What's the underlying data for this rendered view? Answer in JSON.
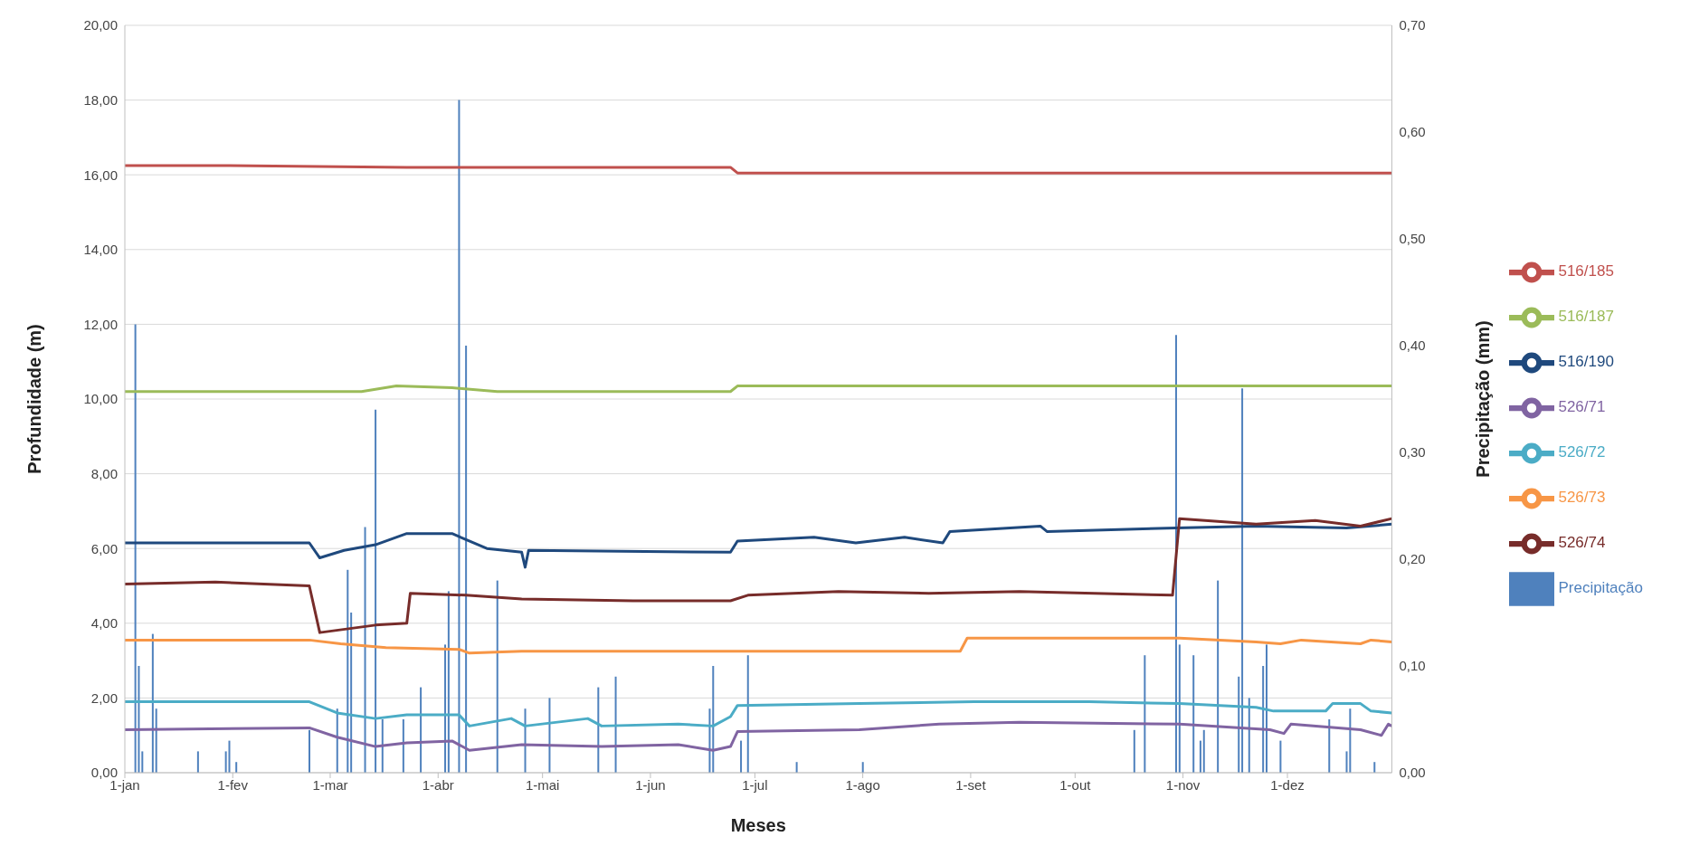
{
  "chart_data": {
    "type": "line",
    "xlabel": "Meses",
    "ylabel": "Profundidade (m)",
    "y2label": "Precipitação (mm)",
    "xlim": [
      "--01-01",
      "--12-31"
    ],
    "xticks": [
      {
        "value": "--01-01",
        "label": "1-jan"
      },
      {
        "value": "--02-01",
        "label": "1-fev"
      },
      {
        "value": "--03-01",
        "label": "1-mar"
      },
      {
        "value": "--04-01",
        "label": "1-abr"
      },
      {
        "value": "--05-01",
        "label": "1-mai"
      },
      {
        "value": "--06-01",
        "label": "1-jun"
      },
      {
        "value": "--07-01",
        "label": "1-jul"
      },
      {
        "value": "--08-01",
        "label": "1-ago"
      },
      {
        "value": "--09-01",
        "label": "1-set"
      },
      {
        "value": "--10-01",
        "label": "1-out"
      },
      {
        "value": "--11-01",
        "label": "1-nov"
      },
      {
        "value": "--12-01",
        "label": "1-dez"
      }
    ],
    "ylim": [
      0,
      20
    ],
    "yticks": [
      {
        "value": 0,
        "label": "0,00"
      },
      {
        "value": 2,
        "label": "2,00"
      },
      {
        "value": 4,
        "label": "4,00"
      },
      {
        "value": 6,
        "label": "6,00"
      },
      {
        "value": 8,
        "label": "8,00"
      },
      {
        "value": 10,
        "label": "10,00"
      },
      {
        "value": 12,
        "label": "12,00"
      },
      {
        "value": 14,
        "label": "14,00"
      },
      {
        "value": 16,
        "label": "16,00"
      },
      {
        "value": 18,
        "label": "18,00"
      },
      {
        "value": 20,
        "label": "20,00"
      }
    ],
    "y2lim": [
      0,
      0.7
    ],
    "y2ticks": [
      {
        "value": 0,
        "label": "0,00"
      },
      {
        "value": 0.1,
        "label": "0,10"
      },
      {
        "value": 0.2,
        "label": "0,20"
      },
      {
        "value": 0.3,
        "label": "0,30"
      },
      {
        "value": 0.4,
        "label": "0,40"
      },
      {
        "value": 0.5,
        "label": "0,50"
      },
      {
        "value": 0.6,
        "label": "0,60"
      },
      {
        "value": 0.7,
        "label": "0,70"
      }
    ],
    "grid": "y",
    "legend": "right",
    "marker": "none",
    "line_style": "solid",
    "series": [
      {
        "name": "Precipitação",
        "type": "bar",
        "axis": "y2",
        "color": "#4f81bd",
        "x": [
          "--01-04",
          "--01-05",
          "--01-06",
          "--01-09",
          "--01-10",
          "--01-22",
          "--01-30",
          "--01-31",
          "--02-02",
          "--02-23",
          "--03-03",
          "--03-06",
          "--03-07",
          "--03-11",
          "--03-14",
          "--03-16",
          "--03-22",
          "--03-27",
          "--04-03",
          "--04-04",
          "--04-07",
          "--04-09",
          "--04-18",
          "--04-26",
          "--05-03",
          "--05-17",
          "--05-22",
          "--06-18",
          "--06-19",
          "--06-27",
          "--06-29",
          "--07-13",
          "--08-01",
          "--10-18",
          "--10-21",
          "--10-30",
          "--10-31",
          "--11-04",
          "--11-06",
          "--11-07",
          "--11-11",
          "--11-17",
          "--11-18",
          "--11-20",
          "--11-24",
          "--11-25",
          "--11-29",
          "--12-13",
          "--12-18",
          "--12-19",
          "--12-26"
        ],
        "values": [
          0.42,
          0.1,
          0.02,
          0.13,
          0.06,
          0.02,
          0.02,
          0.03,
          0.01,
          0.04,
          0.06,
          0.19,
          0.15,
          0.23,
          0.34,
          0.05,
          0.05,
          0.08,
          0.12,
          0.17,
          0.63,
          0.4,
          0.18,
          0.06,
          0.07,
          0.08,
          0.09,
          0.06,
          0.1,
          0.03,
          0.11,
          0.01,
          0.01,
          0.04,
          0.11,
          0.41,
          0.12,
          0.11,
          0.03,
          0.04,
          0.18,
          0.09,
          0.36,
          0.07,
          0.1,
          0.12,
          0.03,
          0.05,
          0.02,
          0.06,
          0.01
        ]
      },
      {
        "name": "516/185",
        "color": "#c0504d",
        "x": [
          "--01-01",
          "--01-27",
          "--03-23",
          "--06-24",
          "--06-26",
          "--12-31"
        ],
        "values": [
          16.25,
          16.25,
          16.2,
          16.2,
          16.05,
          16.05
        ]
      },
      {
        "name": "516/187",
        "color": "#9bbb59",
        "x": [
          "--01-01",
          "--03-10",
          "--03-20",
          "--04-05",
          "--04-18",
          "--06-24",
          "--06-26",
          "--12-31"
        ],
        "values": [
          10.2,
          10.2,
          10.35,
          10.3,
          10.2,
          10.2,
          10.35,
          10.35
        ]
      },
      {
        "name": "526/71",
        "color": "#8064a2",
        "x": [
          "--01-01",
          "--02-23",
          "--03-03",
          "--03-14",
          "--03-23",
          "--04-05",
          "--04-10",
          "--04-25",
          "--05-18",
          "--06-09",
          "--06-19",
          "--06-24",
          "--06-26",
          "--07-31",
          "--08-23",
          "--09-15",
          "--10-31",
          "--11-26",
          "--11-30",
          "--12-02",
          "--12-22",
          "--12-28",
          "--12-30",
          "--12-31"
        ],
        "values": [
          1.15,
          1.2,
          0.95,
          0.7,
          0.8,
          0.85,
          0.6,
          0.75,
          0.7,
          0.75,
          0.6,
          0.7,
          1.1,
          1.15,
          1.3,
          1.35,
          1.3,
          1.15,
          1.05,
          1.3,
          1.15,
          1.0,
          1.3,
          1.25
        ]
      },
      {
        "name": "526/72",
        "color": "#4bacc6",
        "x": [
          "--01-01",
          "--02-23",
          "--03-03",
          "--03-14",
          "--03-23",
          "--04-07",
          "--04-10",
          "--04-22",
          "--04-26",
          "--05-14",
          "--05-18",
          "--06-09",
          "--06-19",
          "--06-24",
          "--06-26",
          "--07-31",
          "--09-02",
          "--10-05",
          "--10-31",
          "--11-22",
          "--11-27",
          "--12-12",
          "--12-14",
          "--12-22",
          "--12-25",
          "--12-31"
        ],
        "values": [
          1.9,
          1.9,
          1.6,
          1.45,
          1.55,
          1.55,
          1.25,
          1.45,
          1.25,
          1.45,
          1.25,
          1.3,
          1.25,
          1.5,
          1.8,
          1.85,
          1.9,
          1.9,
          1.85,
          1.75,
          1.65,
          1.65,
          1.85,
          1.85,
          1.65,
          1.6
        ]
      },
      {
        "name": "526/73",
        "color": "#f79646",
        "x": [
          "--01-01",
          "--02-23",
          "--03-04",
          "--03-17",
          "--04-07",
          "--04-10",
          "--04-25",
          "--08-29",
          "--08-31",
          "--10-31",
          "--11-22",
          "--11-29",
          "--12-05",
          "--12-22",
          "--12-25",
          "--12-31"
        ],
        "values": [
          3.55,
          3.55,
          3.45,
          3.35,
          3.3,
          3.2,
          3.25,
          3.25,
          3.6,
          3.6,
          3.5,
          3.45,
          3.55,
          3.45,
          3.55,
          3.5
        ]
      },
      {
        "name": "516/190",
        "color": "#1f497d",
        "x": [
          "--01-01",
          "--02-23",
          "--02-26",
          "--03-05",
          "--03-14",
          "--03-23",
          "--04-05",
          "--04-15",
          "--04-25",
          "--04-26",
          "--04-27",
          "--06-24",
          "--06-26",
          "--07-18",
          "--07-30",
          "--08-13",
          "--08-24",
          "--08-26",
          "--09-21",
          "--09-23",
          "--10-30",
          "--11-22",
          "--12-18",
          "--12-31"
        ],
        "values": [
          6.15,
          6.15,
          5.75,
          5.95,
          6.1,
          6.4,
          6.4,
          6.0,
          5.9,
          5.5,
          5.95,
          5.9,
          6.2,
          6.3,
          6.15,
          6.3,
          6.15,
          6.45,
          6.6,
          6.45,
          6.55,
          6.6,
          6.55,
          6.65
        ]
      },
      {
        "name": "526/74",
        "color": "#772c2a",
        "x": [
          "--01-01",
          "--01-27",
          "--02-23",
          "--02-26",
          "--03-14",
          "--03-23",
          "--03-24",
          "--04-09",
          "--04-25",
          "--05-27",
          "--06-24",
          "--06-29",
          "--07-25",
          "--08-20",
          "--09-15",
          "--10-29",
          "--10-31",
          "--11-22",
          "--12-09",
          "--12-22",
          "--12-31"
        ],
        "values": [
          5.05,
          5.1,
          5.0,
          3.75,
          3.95,
          4.0,
          4.8,
          4.75,
          4.65,
          4.6,
          4.6,
          4.75,
          4.85,
          4.8,
          4.85,
          4.75,
          6.8,
          6.65,
          6.75,
          6.6,
          6.8
        ]
      }
    ]
  }
}
